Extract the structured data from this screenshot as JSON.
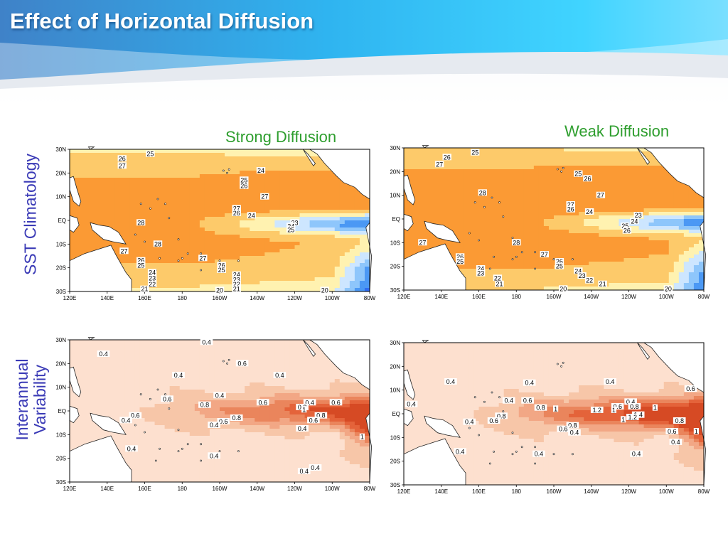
{
  "slide": {
    "title": "Effect of Horizontal Diffusion",
    "column_labels": {
      "strong": "Strong Diffusion",
      "weak": "Weak Diffusion"
    },
    "row_labels": {
      "sst": "SST Climatology",
      "interannual": [
        "Interannual",
        "Variability"
      ]
    }
  },
  "colors": {
    "title_text": "#ffffff",
    "column_label": "#2e9e2e",
    "row_label": "#3a3ab6",
    "sst_warmest": "#ff6a14",
    "sst_coldest": "#0a0ad8",
    "variability_base": "#f7c6a8",
    "variability_high": "#e4633a"
  },
  "axes": {
    "lon_ticks": [
      "120E",
      "140E",
      "160E",
      "180",
      "160W",
      "140W",
      "120W",
      "100W",
      "80W"
    ],
    "lat_ticks": [
      "30N",
      "20N",
      "10N",
      "EQ",
      "10S",
      "20S",
      "30S"
    ]
  },
  "maps": {
    "sst_strong": {
      "labels": [
        {
          "t": "25",
          "lon": 163,
          "lat": 28
        },
        {
          "t": "26",
          "lon": 148,
          "lat": 26
        },
        {
          "t": "27",
          "lon": 148,
          "lat": 23
        },
        {
          "t": "24",
          "lon": 222,
          "lat": 21
        },
        {
          "t": "25",
          "lon": 213,
          "lat": 17
        },
        {
          "t": "26",
          "lon": 213,
          "lat": 14.5
        },
        {
          "t": "27",
          "lon": 224,
          "lat": 10
        },
        {
          "t": "27",
          "lon": 209,
          "lat": 5
        },
        {
          "t": "26",
          "lon": 209,
          "lat": 3
        },
        {
          "t": "24",
          "lon": 217,
          "lat": 2
        },
        {
          "t": "28",
          "lon": 158,
          "lat": -1
        },
        {
          "t": "23",
          "lon": 240,
          "lat": -1
        },
        {
          "t": "24",
          "lon": 238,
          "lat": -2.5
        },
        {
          "t": "25",
          "lon": 238,
          "lat": -4
        },
        {
          "t": "28",
          "lon": 167,
          "lat": -10
        },
        {
          "t": "27",
          "lon": 149,
          "lat": -13
        },
        {
          "t": "27",
          "lon": 191,
          "lat": -16
        },
        {
          "t": "26",
          "lon": 158,
          "lat": -17
        },
        {
          "t": "25",
          "lon": 158,
          "lat": -19
        },
        {
          "t": "26",
          "lon": 201,
          "lat": -19
        },
        {
          "t": "25",
          "lon": 201,
          "lat": -21
        },
        {
          "t": "24",
          "lon": 164,
          "lat": -22
        },
        {
          "t": "24",
          "lon": 209,
          "lat": -23
        },
        {
          "t": "23",
          "lon": 164,
          "lat": -24.5
        },
        {
          "t": "23",
          "lon": 209,
          "lat": -25
        },
        {
          "t": "22",
          "lon": 164,
          "lat": -27
        },
        {
          "t": "22",
          "lon": 209,
          "lat": -27
        },
        {
          "t": "21",
          "lon": 160,
          "lat": -29
        },
        {
          "t": "21",
          "lon": 209,
          "lat": -29
        },
        {
          "t": "20",
          "lon": 200,
          "lat": -29.5
        },
        {
          "t": "20",
          "lon": 256,
          "lat": -29.5
        }
      ]
    },
    "sst_weak": {
      "labels": [
        {
          "t": "25",
          "lon": 158,
          "lat": 28
        },
        {
          "t": "26",
          "lon": 143,
          "lat": 26
        },
        {
          "t": "27",
          "lon": 139,
          "lat": 23
        },
        {
          "t": "25",
          "lon": 213,
          "lat": 19
        },
        {
          "t": "26",
          "lon": 218,
          "lat": 17
        },
        {
          "t": "28",
          "lon": 162,
          "lat": 11
        },
        {
          "t": "27",
          "lon": 225,
          "lat": 10
        },
        {
          "t": "27",
          "lon": 209,
          "lat": 6
        },
        {
          "t": "26",
          "lon": 209,
          "lat": 4
        },
        {
          "t": "24",
          "lon": 219,
          "lat": 3
        },
        {
          "t": "23",
          "lon": 245,
          "lat": 1.5
        },
        {
          "t": "24",
          "lon": 243,
          "lat": -1
        },
        {
          "t": "25",
          "lon": 238,
          "lat": -3
        },
        {
          "t": "26",
          "lon": 239,
          "lat": -5
        },
        {
          "t": "27",
          "lon": 130,
          "lat": -10
        },
        {
          "t": "28",
          "lon": 180,
          "lat": -10
        },
        {
          "t": "27",
          "lon": 195,
          "lat": -15
        },
        {
          "t": "26",
          "lon": 150,
          "lat": -16
        },
        {
          "t": "25",
          "lon": 150,
          "lat": -18
        },
        {
          "t": "26",
          "lon": 203,
          "lat": -18
        },
        {
          "t": "25",
          "lon": 203,
          "lat": -20
        },
        {
          "t": "24",
          "lon": 161,
          "lat": -21
        },
        {
          "t": "24",
          "lon": 213,
          "lat": -22
        },
        {
          "t": "23",
          "lon": 161,
          "lat": -23
        },
        {
          "t": "23",
          "lon": 215,
          "lat": -24
        },
        {
          "t": "22",
          "lon": 170,
          "lat": -25
        },
        {
          "t": "22",
          "lon": 219,
          "lat": -26
        },
        {
          "t": "21",
          "lon": 171,
          "lat": -27.5
        },
        {
          "t": "21",
          "lon": 226,
          "lat": -27.5
        },
        {
          "t": "20",
          "lon": 205,
          "lat": -29.5
        },
        {
          "t": "20",
          "lon": 261,
          "lat": -29.5
        }
      ]
    },
    "var_strong": {
      "labels": [
        {
          "t": "0.4",
          "lon": 193,
          "lat": 29
        },
        {
          "t": "0.4",
          "lon": 138,
          "lat": 24
        },
        {
          "t": "0.6",
          "lon": 212,
          "lat": 20
        },
        {
          "t": "0.4",
          "lon": 178,
          "lat": 15
        },
        {
          "t": "0.4",
          "lon": 232,
          "lat": 15
        },
        {
          "t": "0.4",
          "lon": 200,
          "lat": 6.5
        },
        {
          "t": "0.6",
          "lon": 172,
          "lat": 5
        },
        {
          "t": "0.6",
          "lon": 223,
          "lat": 3.5
        },
        {
          "t": "0.4",
          "lon": 248,
          "lat": 3.5
        },
        {
          "t": "0.6",
          "lon": 262,
          "lat": 3.5
        },
        {
          "t": "0.8",
          "lon": 192,
          "lat": 2.5
        },
        {
          "t": "0.8",
          "lon": 244,
          "lat": 1.5
        },
        {
          "t": "1",
          "lon": 245,
          "lat": 0.5
        },
        {
          "t": "0.6",
          "lon": 155,
          "lat": -2
        },
        {
          "t": "0.4",
          "lon": 150,
          "lat": -4
        },
        {
          "t": "0.8",
          "lon": 254,
          "lat": -2
        },
        {
          "t": "0.8",
          "lon": 209,
          "lat": -3
        },
        {
          "t": "0.6",
          "lon": 202,
          "lat": -4.5
        },
        {
          "t": "0.6",
          "lon": 250,
          "lat": -4
        },
        {
          "t": "0.4",
          "lon": 197,
          "lat": -6
        },
        {
          "t": "0.4",
          "lon": 244,
          "lat": -7.5
        },
        {
          "t": "1",
          "lon": 276,
          "lat": -11
        },
        {
          "t": "0.4",
          "lon": 153,
          "lat": -16
        },
        {
          "t": "0.4",
          "lon": 197,
          "lat": -19
        },
        {
          "t": "0.4",
          "lon": 251,
          "lat": -24
        },
        {
          "t": "0.4",
          "lon": 245,
          "lat": -25.5
        }
      ]
    },
    "var_weak": {
      "labels": [
        {
          "t": "0.4",
          "lon": 145,
          "lat": 13.5
        },
        {
          "t": "0.4",
          "lon": 187,
          "lat": 13
        },
        {
          "t": "0.4",
          "lon": 230,
          "lat": 13.5
        },
        {
          "t": "0.6",
          "lon": 273,
          "lat": 10.5
        },
        {
          "t": "0.4",
          "lon": 176,
          "lat": 5.5
        },
        {
          "t": "0.6",
          "lon": 186,
          "lat": 5.5
        },
        {
          "t": "0.4",
          "lon": 124,
          "lat": 4
        },
        {
          "t": "0.4",
          "lon": 241,
          "lat": 5
        },
        {
          "t": "0.6",
          "lon": 234,
          "lat": 3
        },
        {
          "t": "0.8",
          "lon": 243,
          "lat": 3
        },
        {
          "t": "1",
          "lon": 254,
          "lat": 2.5
        },
        {
          "t": "0.8",
          "lon": 193,
          "lat": 2.5
        },
        {
          "t": "1",
          "lon": 201,
          "lat": 2
        },
        {
          "t": "1.2",
          "lon": 223,
          "lat": 1.5
        },
        {
          "t": "1",
          "lon": 232,
          "lat": 1.5
        },
        {
          "t": "1.4",
          "lon": 245,
          "lat": -0.5
        },
        {
          "t": "1.2",
          "lon": 242,
          "lat": -1.5
        },
        {
          "t": "1",
          "lon": 237,
          "lat": -2.5
        },
        {
          "t": "0.8",
          "lon": 172,
          "lat": -1
        },
        {
          "t": "0.6",
          "lon": 168,
          "lat": -3
        },
        {
          "t": "0.4",
          "lon": 155,
          "lat": -3.5
        },
        {
          "t": "0.8",
          "lon": 267,
          "lat": -3
        },
        {
          "t": "0.8",
          "lon": 210,
          "lat": -5
        },
        {
          "t": "0.6",
          "lon": 205,
          "lat": -6.5
        },
        {
          "t": "0.4",
          "lon": 211,
          "lat": -8
        },
        {
          "t": "0.6",
          "lon": 263,
          "lat": -7.5
        },
        {
          "t": "1",
          "lon": 276,
          "lat": -7.5
        },
        {
          "t": "0.4",
          "lon": 265,
          "lat": -12
        },
        {
          "t": "0.4",
          "lon": 150,
          "lat": -16
        },
        {
          "t": "0.4",
          "lon": 192,
          "lat": -17
        },
        {
          "t": "0.4",
          "lon": 244,
          "lat": -17
        }
      ]
    }
  }
}
